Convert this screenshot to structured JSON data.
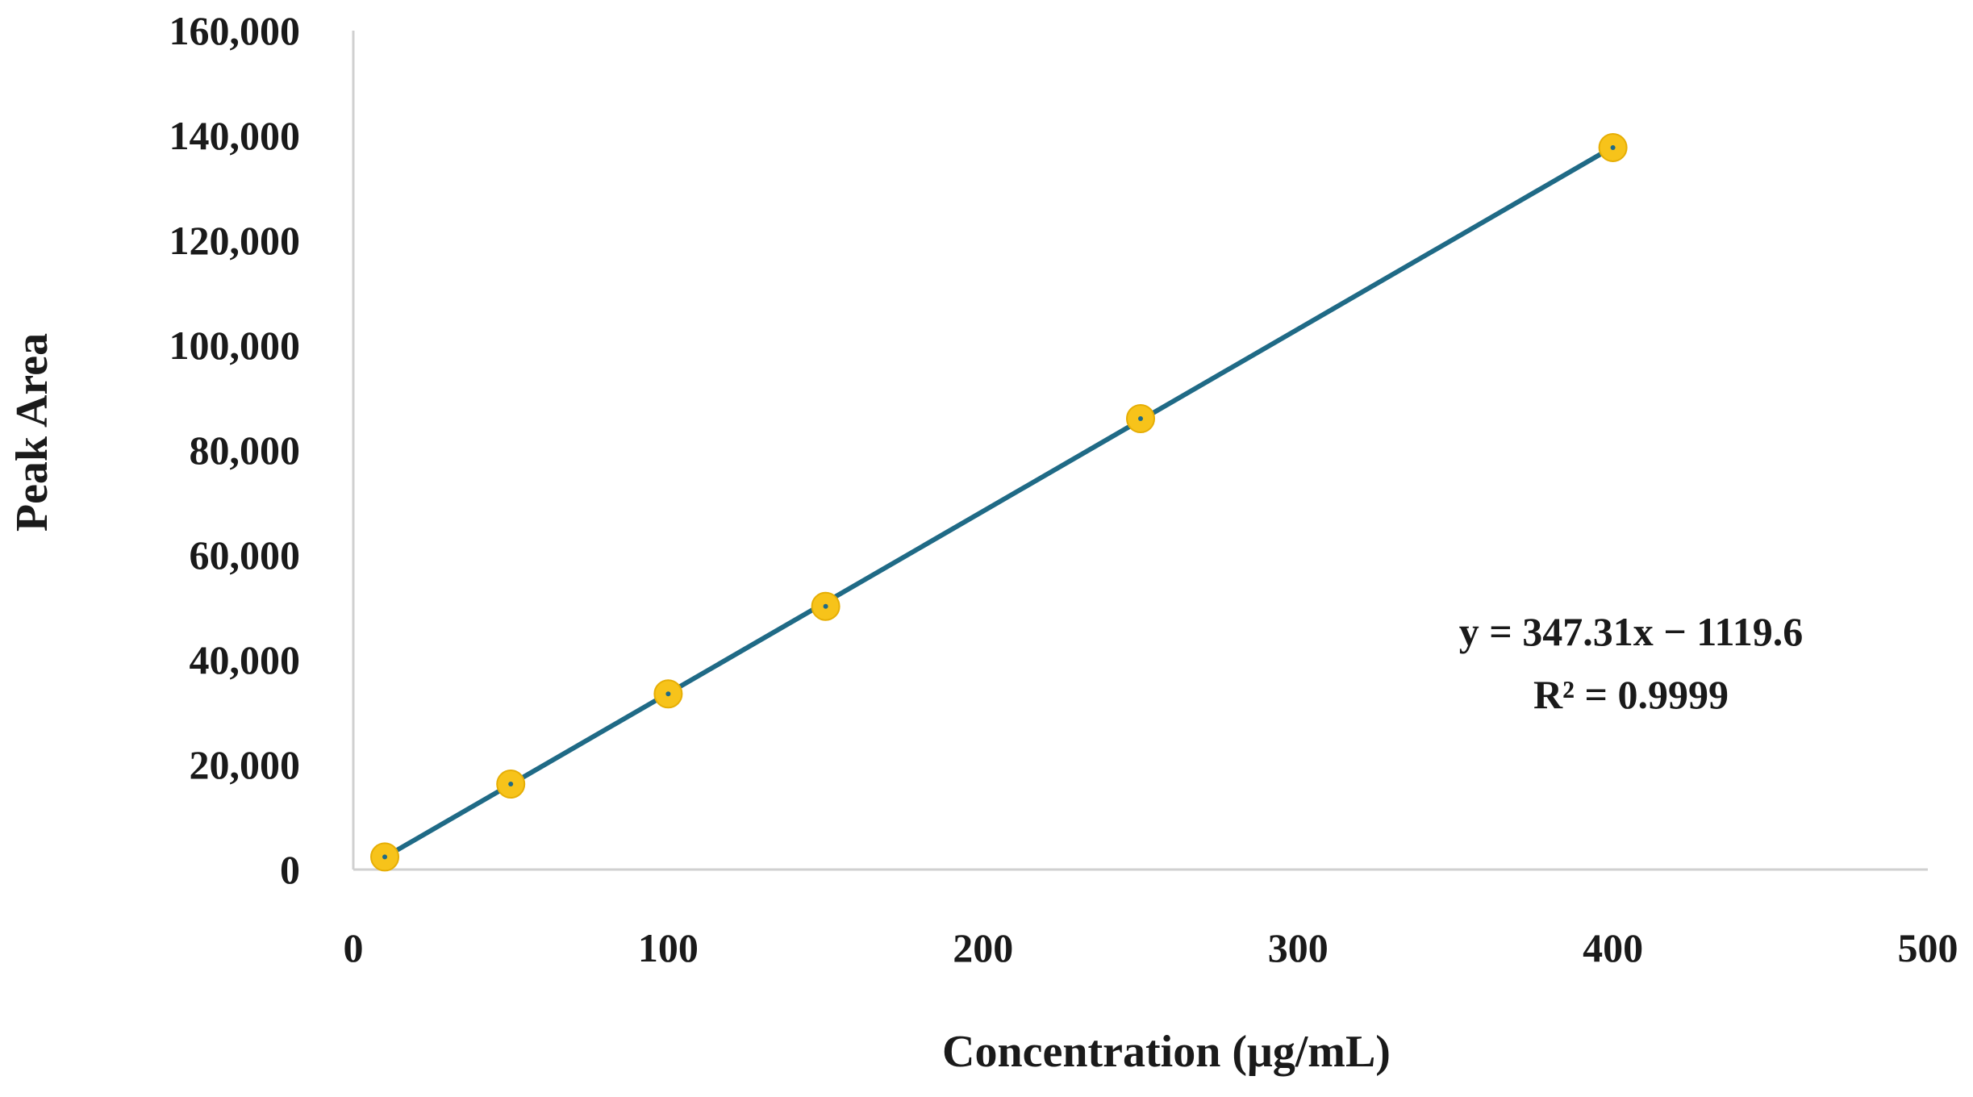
{
  "chart_data": {
    "type": "scatter",
    "title": "",
    "xlabel": "Concentration (μg/mL)",
    "ylabel": "Peak Area",
    "xlim": [
      0,
      500
    ],
    "ylim": [
      0,
      160000
    ],
    "x_ticks": [
      "0",
      "100",
      "200",
      "300",
      "400",
      "500"
    ],
    "y_ticks": [
      "0",
      "20,000",
      "40,000",
      "60,000",
      "80,000",
      "100,000",
      "120,000",
      "140,000",
      "160,000"
    ],
    "grid": false,
    "legend": false,
    "series": [
      {
        "x": [
          10,
          50,
          100,
          150,
          250,
          400
        ],
        "y": [
          2400,
          16300,
          33500,
          50200,
          86000,
          137700
        ]
      }
    ],
    "trendline": {
      "type": "linear",
      "slope": 347.31,
      "intercept": -1119.6,
      "x_range": [
        10,
        400
      ]
    },
    "annotations": [
      "y = 347.31x − 1119.6",
      "R² = 0.9999"
    ],
    "colors": {
      "marker": "#f7c31a",
      "marker_edge": "#e6ae05",
      "line": "#1f6a86",
      "axis": "#d0d0d0",
      "text": "#1a1a1a"
    }
  }
}
